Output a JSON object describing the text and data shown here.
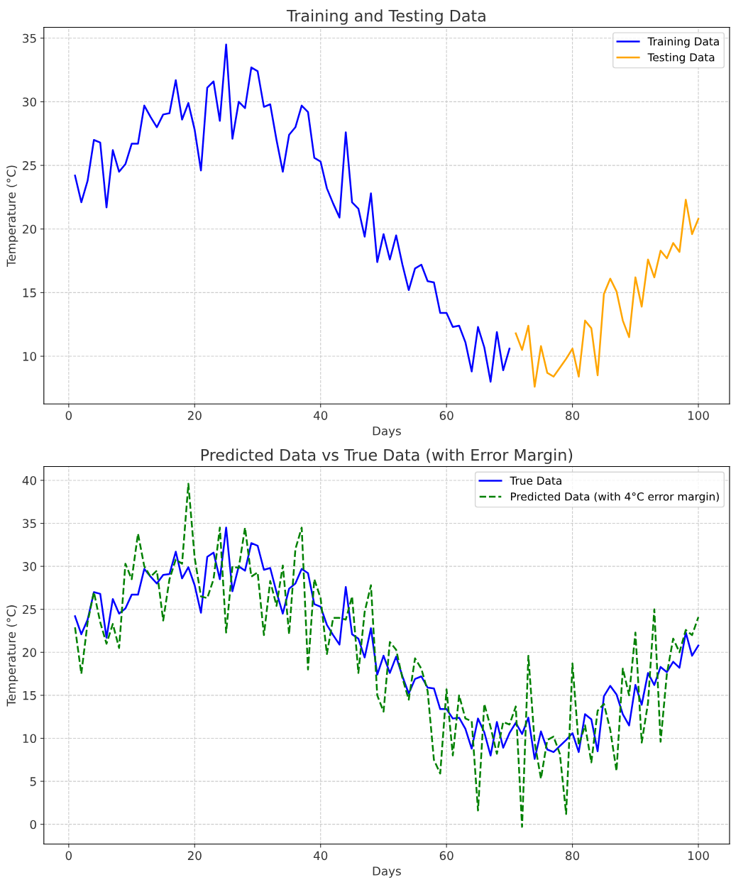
{
  "chart_data": [
    {
      "type": "line",
      "title": "Training and Testing Data",
      "xlabel": "Days",
      "ylabel": "Temperature (°C)",
      "xlim": [
        -3.95,
        104.95
      ],
      "ylim": [
        6.25,
        35.85
      ],
      "xticks": [
        0,
        20,
        40,
        60,
        80,
        100
      ],
      "yticks": [
        10,
        15,
        20,
        25,
        30,
        35
      ],
      "grid": true,
      "legend": "top right",
      "series": [
        {
          "name": "Training Data",
          "color": "#0000ff",
          "x": [
            1,
            2,
            3,
            4,
            5,
            6,
            7,
            8,
            9,
            10,
            11,
            12,
            13,
            14,
            15,
            16,
            17,
            18,
            19,
            20,
            21,
            22,
            23,
            24,
            25,
            26,
            27,
            28,
            29,
            30,
            31,
            32,
            33,
            34,
            35,
            36,
            37,
            38,
            39,
            40,
            41,
            42,
            43,
            44,
            45,
            46,
            47,
            48,
            49,
            50,
            51,
            52,
            53,
            54,
            55,
            56,
            57,
            58,
            59,
            60,
            61,
            62,
            63,
            64,
            65,
            66,
            67,
            68,
            69,
            70
          ],
          "values": [
            24.2,
            22.1,
            23.8,
            27.0,
            26.8,
            21.7,
            26.2,
            24.5,
            25.1,
            26.7,
            26.7,
            29.7,
            28.8,
            28.0,
            29.0,
            29.1,
            31.7,
            28.6,
            29.9,
            27.8,
            24.6,
            31.1,
            31.6,
            28.5,
            34.5,
            27.1,
            30.0,
            29.5,
            32.7,
            32.4,
            29.6,
            29.8,
            27.0,
            24.5,
            27.4,
            28.0,
            29.7,
            29.2,
            25.6,
            25.3,
            23.2,
            22.0,
            20.9,
            27.6,
            22.1,
            21.6,
            19.4,
            22.8,
            17.4,
            19.6,
            17.6,
            19.5,
            17.2,
            15.2,
            16.9,
            17.2,
            15.9,
            15.8,
            13.4,
            13.4,
            12.3,
            12.4,
            11.1,
            8.8,
            12.3,
            10.7,
            8.0,
            11.9,
            8.9,
            10.6
          ]
        },
        {
          "name": "Testing Data",
          "color": "#ffa500",
          "x": [
            71,
            72,
            73,
            74,
            75,
            76,
            77,
            78,
            79,
            80,
            81,
            82,
            83,
            84,
            85,
            86,
            87,
            88,
            89,
            90,
            91,
            92,
            93,
            94,
            95,
            96,
            97,
            98,
            99,
            100
          ],
          "values": [
            11.8,
            10.5,
            12.4,
            7.6,
            10.8,
            8.7,
            8.4,
            9.1,
            9.8,
            10.6,
            8.4,
            12.8,
            12.2,
            8.5,
            14.9,
            16.1,
            15.1,
            12.8,
            11.5,
            16.2,
            13.9,
            17.6,
            16.2,
            18.3,
            17.7,
            18.9,
            18.2,
            22.3,
            19.6,
            20.8
          ]
        }
      ]
    },
    {
      "type": "line",
      "title": "Predicted Data vs True Data (with Error Margin)",
      "xlabel": "Days",
      "ylabel": "Temperature (°C)",
      "xlim": [
        -3.95,
        104.95
      ],
      "ylim": [
        -2.3,
        41.6
      ],
      "xticks": [
        0,
        20,
        40,
        60,
        80,
        100
      ],
      "yticks": [
        0,
        5,
        10,
        15,
        20,
        25,
        30,
        35,
        40
      ],
      "grid": true,
      "legend": "top right",
      "x": [
        1,
        2,
        3,
        4,
        5,
        6,
        7,
        8,
        9,
        10,
        11,
        12,
        13,
        14,
        15,
        16,
        17,
        18,
        19,
        20,
        21,
        22,
        23,
        24,
        25,
        26,
        27,
        28,
        29,
        30,
        31,
        32,
        33,
        34,
        35,
        36,
        37,
        38,
        39,
        40,
        41,
        42,
        43,
        44,
        45,
        46,
        47,
        48,
        49,
        50,
        51,
        52,
        53,
        54,
        55,
        56,
        57,
        58,
        59,
        60,
        61,
        62,
        63,
        64,
        65,
        66,
        67,
        68,
        69,
        70,
        71,
        72,
        73,
        74,
        75,
        76,
        77,
        78,
        79,
        80,
        81,
        82,
        83,
        84,
        85,
        86,
        87,
        88,
        89,
        90,
        91,
        92,
        93,
        94,
        95,
        96,
        97,
        98,
        99,
        100
      ],
      "series": [
        {
          "name": "True Data",
          "color": "#0000ff",
          "line_style": "solid",
          "values": [
            24.2,
            22.1,
            23.8,
            27.0,
            26.8,
            21.7,
            26.2,
            24.5,
            25.1,
            26.7,
            26.7,
            29.7,
            28.8,
            28.0,
            29.0,
            29.1,
            31.7,
            28.6,
            29.9,
            27.8,
            24.6,
            31.1,
            31.6,
            28.5,
            34.5,
            27.1,
            30.0,
            29.5,
            32.7,
            32.4,
            29.6,
            29.8,
            27.0,
            24.5,
            27.4,
            28.0,
            29.7,
            29.2,
            25.6,
            25.3,
            23.2,
            22.0,
            20.9,
            27.6,
            22.1,
            21.6,
            19.4,
            22.8,
            17.4,
            19.6,
            17.6,
            19.5,
            17.2,
            15.2,
            16.9,
            17.2,
            15.9,
            15.8,
            13.4,
            13.4,
            12.3,
            12.4,
            11.1,
            8.8,
            12.3,
            10.7,
            8.0,
            11.9,
            8.9,
            10.6,
            11.8,
            10.5,
            12.4,
            7.6,
            10.8,
            8.7,
            8.4,
            9.1,
            9.8,
            10.6,
            8.4,
            12.8,
            12.2,
            8.5,
            14.9,
            16.1,
            15.1,
            12.8,
            11.5,
            16.2,
            13.9,
            17.6,
            16.2,
            18.3,
            17.7,
            18.9,
            18.2,
            22.3,
            19.6,
            20.8
          ]
        },
        {
          "name": "Predicted Data (with 4°C error margin)",
          "color": "#008000",
          "line_style": "dashed",
          "values": [
            22.9,
            17.5,
            23.5,
            27.0,
            23.5,
            21.0,
            23.3,
            20.5,
            30.3,
            28.5,
            33.8,
            30.0,
            28.8,
            29.5,
            23.7,
            28.5,
            30.8,
            30.3,
            39.6,
            31.0,
            26.5,
            26.3,
            28.5,
            34.5,
            22.3,
            30.0,
            29.8,
            34.5,
            28.8,
            29.3,
            22.0,
            28.3,
            25.4,
            30.1,
            22.1,
            32.0,
            34.5,
            18.0,
            28.5,
            26.3,
            19.8,
            24.0,
            24.0,
            23.8,
            26.5,
            17.6,
            24.7,
            27.8,
            15.0,
            13.1,
            21.2,
            20.3,
            17.0,
            14.5,
            19.3,
            18.1,
            15.5,
            7.5,
            5.9,
            15.7,
            8.0,
            15.0,
            12.3,
            12.0,
            1.6,
            14.0,
            11.3,
            8.2,
            11.9,
            11.6,
            13.7,
            -0.3,
            19.6,
            9.5,
            5.3,
            9.8,
            10.2,
            8.2,
            1.2,
            18.7,
            9.2,
            11.5,
            7.2,
            13.2,
            14.0,
            11.0,
            6.2,
            18.1,
            15.0,
            22.3,
            9.5,
            14.1,
            25.0,
            9.6,
            17.5,
            21.6,
            20.0,
            22.6,
            22.0,
            24.1
          ]
        }
      ]
    }
  ]
}
